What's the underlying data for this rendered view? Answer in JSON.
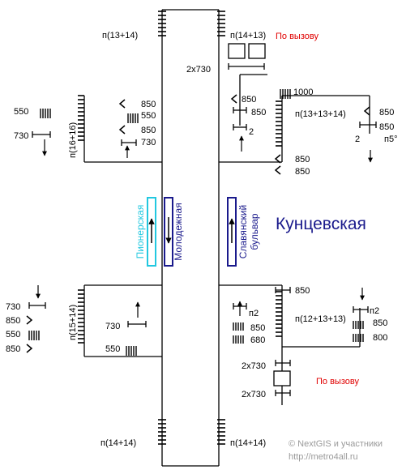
{
  "station": {
    "name": "Кунцевская"
  },
  "lines": [
    {
      "name": "Пионерская",
      "color": "#22c8e0"
    },
    {
      "name": "Молодежная",
      "color": "#1a1a8c"
    },
    {
      "name": "Славянский бульвар",
      "line1": "Славянский",
      "line2": "бульвар",
      "color": "#1a1a8c"
    }
  ],
  "sidings": {
    "top_left": "п(13+14)",
    "top_right": "п(14+13)",
    "left_upper": "п(16+16)",
    "right_upper": "п(13+13+14)",
    "left_lower": "п(15+14)",
    "right_lower": "п(12+13+13)",
    "bottom_left": "п(14+14)",
    "bottom_right": "п(14+14)"
  },
  "notes": {
    "on_call_top": "По вызову",
    "on_call_bottom": "По вызову",
    "note_color": "#e00000"
  },
  "signals": {
    "ru_2x730_top": "2x730",
    "ru_1000": "1000",
    "ru_850_a": "850",
    "ru_850_b": "850",
    "ru_2_left": "2",
    "ru_850_far_a": "850",
    "ru_850_far_b": "850",
    "ru_2_far": "2",
    "ru_p5": "п5°",
    "ru_850_mid_a": "850",
    "ru_850_mid_b": "850",
    "lu_550_left": "550",
    "lu_730_left": "730",
    "lu_850_a": "850",
    "lu_550_b": "550",
    "lu_850_c": "850",
    "lu_730_d": "730",
    "ll_730_a": "730",
    "ll_850_b": "850",
    "ll_550_c": "550",
    "ll_850_d": "850",
    "ll_730_right": "730",
    "ll_550_right": "550",
    "rl_850_top": "850",
    "rl_p2_left": "п2",
    "rl_850_left": "850",
    "rl_680_left": "680",
    "rl_p2_right": "п2",
    "rl_850_right": "850",
    "rl_800_right": "800",
    "rl_2x730_a": "2x730",
    "rl_2x730_b": "2x730"
  },
  "credit": {
    "line1": "© NextGIS и участники",
    "line2": "http://metro4all.ru"
  }
}
